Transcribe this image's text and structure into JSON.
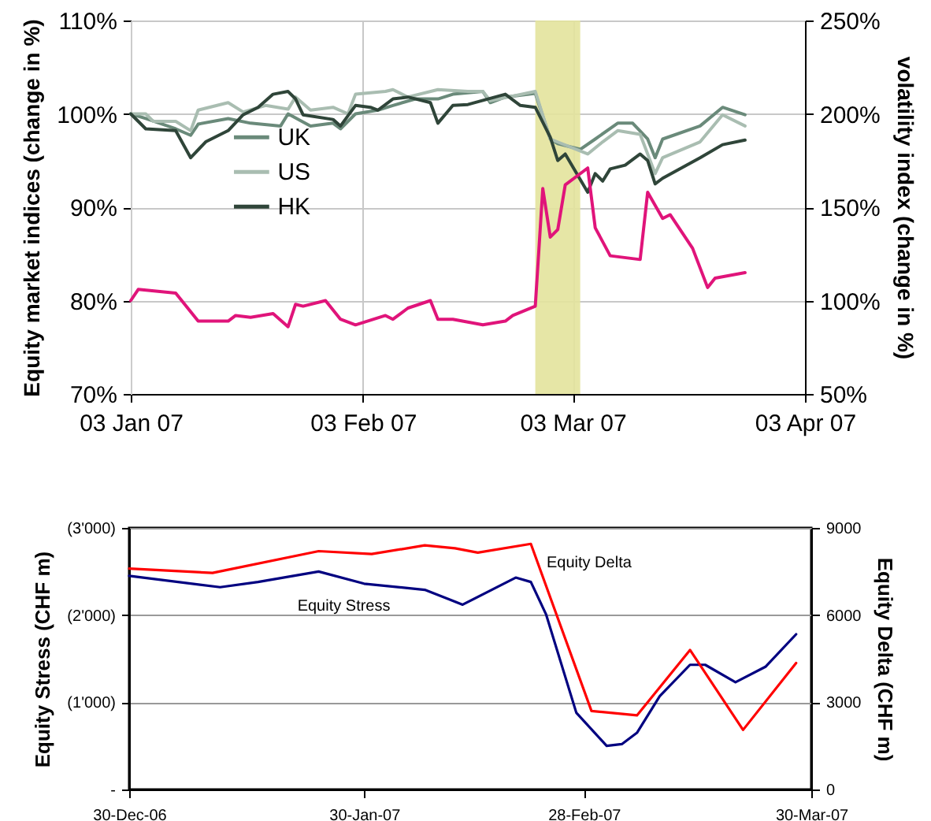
{
  "chart_data": [
    {
      "type": "line",
      "ylabel": "Equity market indices (change in %)",
      "y2label": "volatility index (change in %)",
      "xlim": [
        "2007-01-03",
        "2007-04-03"
      ],
      "xticks": [
        {
          "value": "2007-01-03",
          "label": "03 Jan 07"
        },
        {
          "value": "2007-02-03",
          "label": "03 Feb 07"
        },
        {
          "value": "2007-03-03",
          "label": "03 Mar 07"
        },
        {
          "value": "2007-04-03",
          "label": "03 Apr 07"
        }
      ],
      "ylim": [
        70,
        110
      ],
      "yticks": [
        {
          "value": 70,
          "label": "70%"
        },
        {
          "value": 80,
          "label": "80%"
        },
        {
          "value": 90,
          "label": "90%"
        },
        {
          "value": 100,
          "label": "100%"
        },
        {
          "value": 110,
          "label": "110%"
        }
      ],
      "y2lim": [
        50,
        250
      ],
      "y2ticks": [
        {
          "value": 50,
          "label": "50%"
        },
        {
          "value": 100,
          "label": "100%"
        },
        {
          "value": 150,
          "label": "150%"
        },
        {
          "value": 200,
          "label": "200%"
        },
        {
          "value": 250,
          "label": "250%"
        }
      ],
      "grid": true,
      "legend": "left",
      "bands": [
        {
          "axis": "x",
          "from": "2007-02-26",
          "to": "2007-03-04",
          "color": "#e3e39c"
        }
      ],
      "series": [
        {
          "name": "UK",
          "color": "#6a8a7a",
          "x": [
            "2007-01-03",
            "2007-01-05",
            "2007-01-09",
            "2007-01-11",
            "2007-01-12",
            "2007-01-16",
            "2007-01-19",
            "2007-01-23",
            "2007-01-24",
            "2007-01-27",
            "2007-01-30",
            "2007-01-31",
            "2007-02-02",
            "2007-02-05",
            "2007-02-07",
            "2007-02-10",
            "2007-02-13",
            "2007-02-15",
            "2007-02-19",
            "2007-02-20",
            "2007-02-22",
            "2007-02-26",
            "2007-02-28",
            "2007-03-01",
            "2007-03-04",
            "2007-03-06",
            "2007-03-09",
            "2007-03-11",
            "2007-03-13",
            "2007-03-14",
            "2007-03-15",
            "2007-03-20",
            "2007-03-23",
            "2007-03-26"
          ],
          "values": [
            100,
            99.5,
            98.4,
            97.7,
            98.9,
            99.5,
            99,
            98.7,
            100,
            98.7,
            99,
            98.4,
            100,
            100.4,
            100.9,
            101.6,
            101.6,
            102.1,
            102.4,
            101.2,
            101.8,
            102.2,
            97.3,
            96.8,
            96.2,
            97.3,
            99,
            99,
            97.3,
            95.3,
            97.3,
            98.7,
            100.7,
            99.9
          ]
        },
        {
          "name": "US",
          "color": "#a9bdb1",
          "x": [
            "2007-01-03",
            "2007-01-05",
            "2007-01-06",
            "2007-01-09",
            "2007-01-11",
            "2007-01-12",
            "2007-01-16",
            "2007-01-18",
            "2007-01-21",
            "2007-01-24",
            "2007-01-25",
            "2007-01-27",
            "2007-01-30",
            "2007-02-01",
            "2007-02-02",
            "2007-02-06",
            "2007-02-07",
            "2007-02-09",
            "2007-02-13",
            "2007-02-17",
            "2007-02-19",
            "2007-02-20",
            "2007-02-26",
            "2007-02-28",
            "2007-03-05",
            "2007-03-07",
            "2007-03-09",
            "2007-03-12",
            "2007-03-14",
            "2007-03-15",
            "2007-03-20",
            "2007-03-23",
            "2007-03-26"
          ],
          "values": [
            100,
            100,
            99.2,
            99.2,
            98.2,
            100.4,
            101.2,
            100.2,
            100.9,
            100.5,
            101.8,
            100.4,
            100.7,
            100,
            102.1,
            102.4,
            102.6,
            101.8,
            102.6,
            102.4,
            102.4,
            101.4,
            102.4,
            97.3,
            95.7,
            97,
            98.2,
            97.8,
            93.6,
            95.3,
            97,
            99.9,
            98.7
          ]
        },
        {
          "name": "HK",
          "color": "#2f4539",
          "x": [
            "2007-01-03",
            "2007-01-05",
            "2007-01-09",
            "2007-01-11",
            "2007-01-13",
            "2007-01-16",
            "2007-01-18",
            "2007-01-20",
            "2007-01-22",
            "2007-01-24",
            "2007-01-25",
            "2007-01-26",
            "2007-01-30",
            "2007-01-31",
            "2007-02-02",
            "2007-02-04",
            "2007-02-05",
            "2007-02-07",
            "2007-02-09",
            "2007-02-12",
            "2007-02-13",
            "2007-02-15",
            "2007-02-17",
            "2007-02-22",
            "2007-02-24",
            "2007-02-26",
            "2007-02-28",
            "2007-03-01",
            "2007-03-02",
            "2007-03-05",
            "2007-03-06",
            "2007-03-07",
            "2007-03-08",
            "2007-03-10",
            "2007-03-12",
            "2007-03-13",
            "2007-03-14",
            "2007-03-15",
            "2007-03-20",
            "2007-03-23",
            "2007-03-26"
          ],
          "values": [
            100,
            98.4,
            98.2,
            95.3,
            97,
            98.2,
            99.9,
            100.7,
            102.1,
            102.4,
            101.6,
            99.9,
            99.4,
            98.7,
            100.9,
            100.7,
            100.4,
            101.6,
            101.8,
            101.2,
            99,
            100.9,
            101,
            102.1,
            100.9,
            100.7,
            97.5,
            95,
            95.7,
            91.6,
            93.6,
            92.8,
            94.1,
            94.5,
            95.7,
            95,
            92.5,
            93.1,
            95.3,
            96.7,
            97.2
          ]
        },
        {
          "color": "#e0147a",
          "axis": "y2",
          "x": [
            "2007-01-03",
            "2007-01-04",
            "2007-01-09",
            "2007-01-12",
            "2007-01-16",
            "2007-01-17",
            "2007-01-19",
            "2007-01-22",
            "2007-01-24",
            "2007-01-25",
            "2007-01-26",
            "2007-01-29",
            "2007-01-31",
            "2007-02-02",
            "2007-02-06",
            "2007-02-07",
            "2007-02-09",
            "2007-02-12",
            "2007-02-13",
            "2007-02-15",
            "2007-02-19",
            "2007-02-22",
            "2007-02-23",
            "2007-02-26",
            "2007-02-27",
            "2007-02-28",
            "2007-03-01",
            "2007-03-02",
            "2007-03-05",
            "2007-03-06",
            "2007-03-08",
            "2007-03-12",
            "2007-03-13",
            "2007-03-15",
            "2007-03-16",
            "2007-03-19",
            "2007-03-21",
            "2007-03-22",
            "2007-03-26"
          ],
          "values": [
            100,
            106,
            104,
            89,
            89,
            92,
            91,
            93,
            86,
            98,
            97,
            100,
            90,
            87,
            92,
            90,
            96,
            100,
            90,
            90,
            87,
            89,
            92,
            97,
            160,
            134,
            138,
            162,
            171,
            139,
            124,
            122,
            158,
            144,
            146,
            128,
            107,
            112,
            115
          ]
        }
      ]
    },
    {
      "type": "line",
      "ylabel": "Equity Stress (CHF m)",
      "y2label": "Equity Delta (CHF m)",
      "xlim": [
        "2006-12-30",
        "2007-03-30"
      ],
      "xticks": [
        {
          "value": "2006-12-30",
          "label": "30-Dec-06"
        },
        {
          "value": "2007-01-30",
          "label": "30-Jan-07"
        },
        {
          "value": "2007-02-28",
          "label": "28-Feb-07"
        },
        {
          "value": "2007-03-30",
          "label": "30-Mar-07"
        }
      ],
      "ylim": [
        0,
        -3000
      ],
      "yticks": [
        {
          "value": 0,
          "label": "-"
        },
        {
          "value": -1000,
          "label": "(1'000)"
        },
        {
          "value": -2000,
          "label": "(2'000)"
        },
        {
          "value": -3000,
          "label": "(3'000)"
        }
      ],
      "y2lim": [
        0,
        9000
      ],
      "y2ticks": [
        0,
        3000,
        6000,
        9000
      ],
      "grid": "y",
      "series": [
        {
          "name": "Equity Stress",
          "color": "#000080",
          "x": [
            "2006-12-30",
            "2007-01-11",
            "2007-01-16",
            "2007-01-24",
            "2007-01-30",
            "2007-02-07",
            "2007-02-12",
            "2007-02-19",
            "2007-02-21",
            "2007-02-23",
            "2007-02-27",
            "2007-03-03",
            "2007-03-05",
            "2007-03-07",
            "2007-03-10",
            "2007-03-14",
            "2007-03-16",
            "2007-03-20",
            "2007-03-24",
            "2007-03-28"
          ],
          "values": [
            -2450,
            -2320,
            -2380,
            -2500,
            -2360,
            -2290,
            -2120,
            -2430,
            -2380,
            -2010,
            -880,
            -500,
            -520,
            -650,
            -1070,
            -1430,
            -1430,
            -1230,
            -1410,
            -1780
          ]
        },
        {
          "name": "Equity Delta",
          "color": "#ff0000",
          "axis": "y2",
          "x": [
            "2006-12-30",
            "2007-01-10",
            "2007-01-24",
            "2007-01-31",
            "2007-02-07",
            "2007-02-11",
            "2007-02-14",
            "2007-02-21",
            "2007-03-01",
            "2007-03-07",
            "2007-03-14",
            "2007-03-21",
            "2007-03-28"
          ],
          "values": [
            7600,
            7450,
            8200,
            8100,
            8400,
            8300,
            8150,
            8450,
            2700,
            2550,
            4800,
            2050,
            4350
          ]
        }
      ]
    }
  ]
}
